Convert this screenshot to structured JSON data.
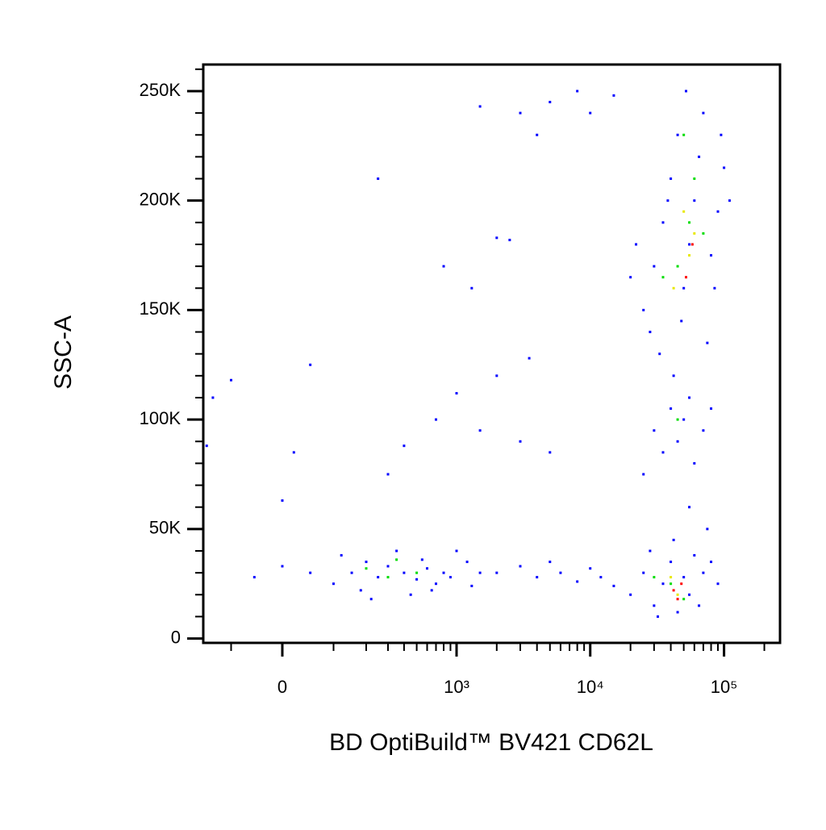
{
  "chart_data": {
    "type": "scatter",
    "xlabel": "BD OptiBuild™ BV421 CD62L",
    "ylabel": "SSC-A",
    "xscale": "biexponential",
    "xlim": [
      -182,
      262000
    ],
    "ylim": [
      -2000,
      262144
    ],
    "xticks": [
      0,
      {
        "value": 1000,
        "label": "10³"
      },
      {
        "value": 10000,
        "label": "10⁴"
      },
      {
        "value": 100000,
        "label": "10⁵"
      }
    ],
    "xminorticks": [
      -100,
      100,
      200,
      300,
      400,
      500,
      600,
      700,
      800,
      900,
      2000,
      3000,
      4000,
      5000,
      6000,
      7000,
      8000,
      9000,
      20000,
      30000,
      40000,
      50000,
      60000,
      70000,
      80000,
      90000,
      200000
    ],
    "yticks": [
      0,
      {
        "value": 50000,
        "label": "50K"
      },
      {
        "value": 100000,
        "label": "100K"
      },
      {
        "value": 150000,
        "label": "150K"
      },
      {
        "value": 200000,
        "label": "200K"
      },
      {
        "value": 250000,
        "label": "250K"
      }
    ],
    "yminorticks": [
      10000,
      20000,
      30000,
      40000,
      60000,
      70000,
      80000,
      90000,
      110000,
      120000,
      130000,
      140000,
      160000,
      170000,
      180000,
      190000,
      210000,
      220000,
      230000,
      240000,
      260000
    ],
    "series": [
      {
        "color": "#0000ff",
        "x": [
          150,
          200,
          250,
          300,
          180,
          400,
          500,
          600,
          700,
          350,
          450,
          550,
          800,
          900,
          1200,
          1500,
          120,
          100,
          220,
          650,
          1000,
          1300,
          50,
          0,
          -50,
          2000,
          3000,
          4000,
          5000,
          6000,
          8000,
          10000,
          12000,
          15000,
          20000,
          25000,
          30000,
          35000,
          40000,
          45000,
          50000,
          55000,
          60000,
          70000,
          28000,
          32000,
          65000,
          80000,
          90000,
          42000,
          75000,
          55000,
          25000,
          30000,
          35000,
          40000,
          45000,
          50000,
          55000,
          60000,
          65000,
          70000,
          80000,
          90000,
          100000,
          28000,
          33000,
          38000,
          48000,
          52000,
          85000,
          95000,
          110000,
          22000,
          20000,
          75000,
          42000,
          30000,
          35000,
          40000,
          45000,
          50000,
          55000,
          60000,
          70000,
          80000,
          25000,
          5000,
          8000,
          10000,
          15000,
          3000,
          4000,
          -150,
          -100,
          50,
          250,
          1500,
          800,
          1300,
          2000,
          2500,
          3500,
          2000,
          1000,
          700,
          400,
          300,
          1500,
          3000,
          5000,
          20,
          0,
          -170
        ],
        "y": [
          30000,
          35000,
          28000,
          33000,
          22000,
          30000,
          27000,
          32000,
          25000,
          40000,
          20000,
          36000,
          30000,
          28000,
          35000,
          30000,
          38000,
          25000,
          18000,
          22000,
          40000,
          24000,
          30000,
          33000,
          28000,
          30000,
          33000,
          28000,
          35000,
          30000,
          26000,
          32000,
          28000,
          24000,
          20000,
          30000,
          15000,
          25000,
          35000,
          12000,
          28000,
          20000,
          38000,
          30000,
          40000,
          10000,
          15000,
          35000,
          25000,
          45000,
          50000,
          60000,
          150000,
          170000,
          190000,
          210000,
          230000,
          160000,
          180000,
          200000,
          220000,
          240000,
          175000,
          195000,
          215000,
          140000,
          130000,
          200000,
          145000,
          250000,
          160000,
          230000,
          200000,
          180000,
          165000,
          135000,
          120000,
          95000,
          85000,
          105000,
          90000,
          100000,
          110000,
          80000,
          95000,
          105000,
          75000,
          245000,
          250000,
          240000,
          248000,
          240000,
          230000,
          110000,
          118000,
          125000,
          210000,
          243000,
          170000,
          160000,
          183000,
          182000,
          128000,
          120000,
          112000,
          100000,
          88000,
          75000,
          95000,
          90000,
          85000,
          85000,
          63000,
          88000
        ]
      },
      {
        "color": "#00dd00",
        "x": [
          200,
          300,
          500,
          350,
          40000,
          50000,
          45000,
          55000,
          60000,
          50000,
          35000,
          70000,
          45000,
          30000
        ],
        "y": [
          32000,
          28000,
          30000,
          36000,
          25000,
          18000,
          170000,
          190000,
          210000,
          230000,
          165000,
          185000,
          100000,
          28000
        ]
      },
      {
        "color": "#e8e800",
        "x": [
          40000,
          45000,
          55000,
          50000,
          60000,
          42000
        ],
        "y": [
          28000,
          20000,
          175000,
          195000,
          185000,
          160000
        ]
      },
      {
        "color": "#ff0000",
        "x": [
          42000,
          48000,
          45000,
          58000,
          52000
        ],
        "y": [
          22000,
          25000,
          18000,
          180000,
          165000
        ]
      }
    ]
  }
}
